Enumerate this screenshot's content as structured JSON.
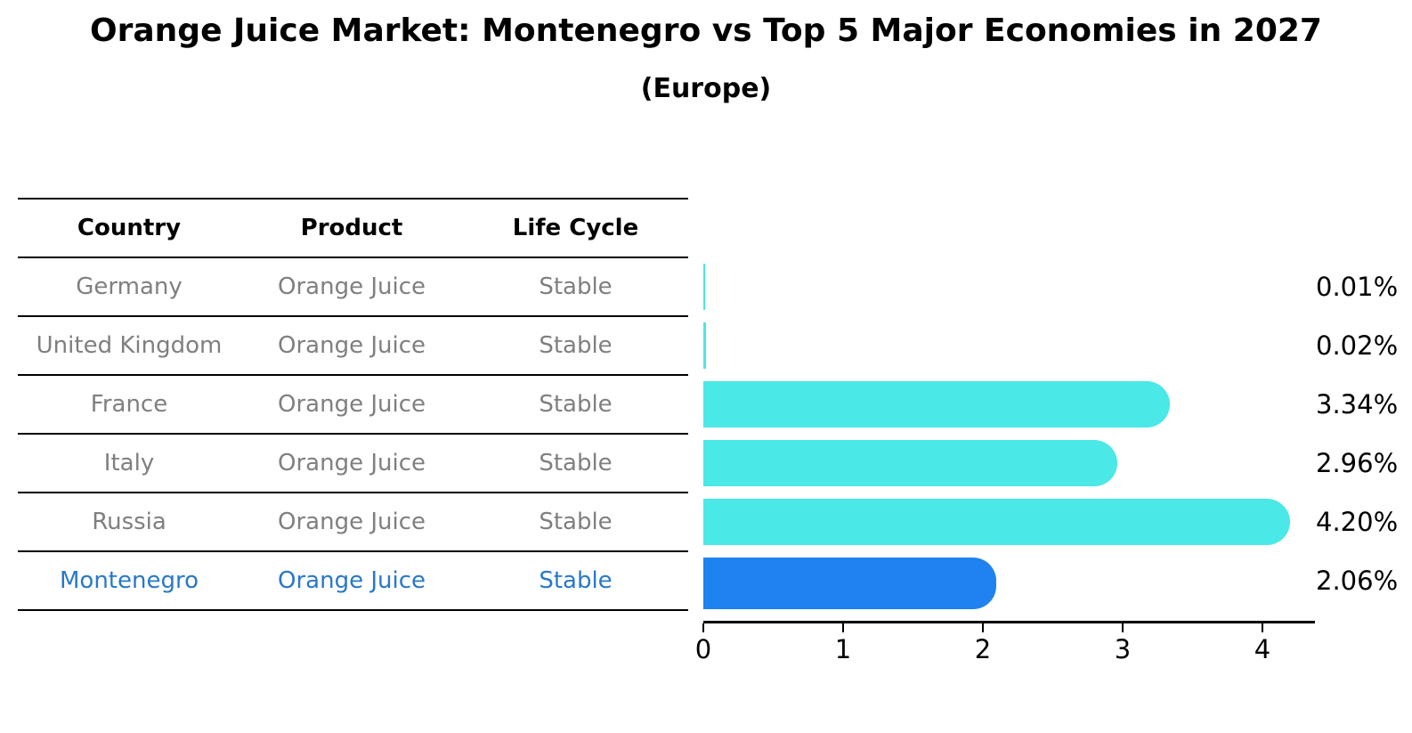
{
  "title": "Orange Juice Market: Montenegro vs Top 5 Major Economies in 2027",
  "subtitle": "(Europe)",
  "table": {
    "headers": [
      "Country",
      "Product",
      "Life Cycle"
    ],
    "rows": [
      {
        "country": "Germany",
        "product": "Orange Juice",
        "life_cycle": "Stable"
      },
      {
        "country": "United Kingdom",
        "product": "Orange Juice",
        "life_cycle": "Stable"
      },
      {
        "country": "France",
        "product": "Orange Juice",
        "life_cycle": "Stable"
      },
      {
        "country": "Italy",
        "product": "Orange Juice",
        "life_cycle": "Stable"
      },
      {
        "country": "Russia",
        "product": "Orange Juice",
        "life_cycle": "Stable"
      },
      {
        "country": "Montenegro",
        "product": "Orange Juice",
        "life_cycle": "Stable"
      }
    ]
  },
  "chart_data": {
    "type": "bar",
    "orientation": "horizontal",
    "title": "Orange Juice Market: Montenegro vs Top 5 Major Economies in 2027",
    "subtitle": "(Europe)",
    "categories": [
      "Germany",
      "United Kingdom",
      "France",
      "Italy",
      "Russia",
      "Montenegro"
    ],
    "values": [
      0.01,
      0.02,
      3.34,
      2.96,
      4.2,
      2.06
    ],
    "value_labels": [
      "0.01%",
      "0.02%",
      "3.34%",
      "2.96%",
      "4.20%",
      "2.06%"
    ],
    "xticks": [
      0,
      1,
      2,
      3,
      4
    ],
    "xlim": [
      0,
      4.4
    ],
    "grid": false,
    "legend": "none",
    "bar_color": "#4AE8E6",
    "highlight_color": "#1E82F0",
    "highlight_index": 5,
    "highlight_edge_style": "dotted"
  },
  "colors": {
    "text": "#000000",
    "muted_row_text": "#7f7f7f",
    "highlight_row_text": "#2878CB",
    "axis": "#000000"
  }
}
